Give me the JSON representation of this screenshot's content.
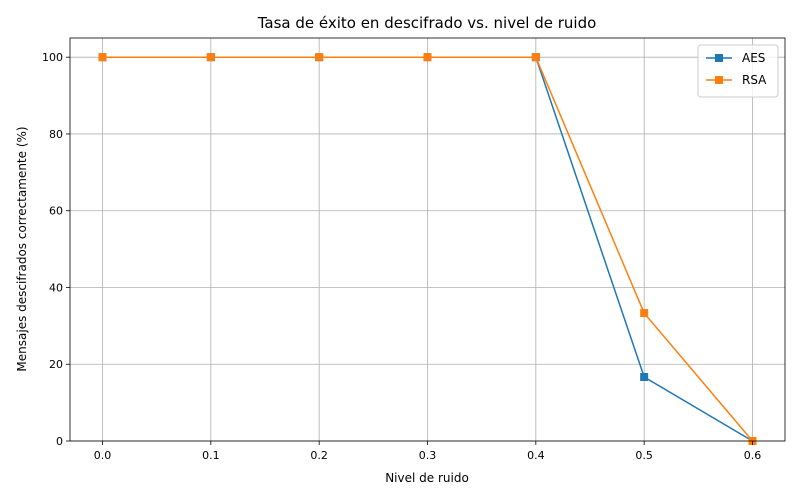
{
  "chart_data": {
    "type": "line",
    "title": "Tasa de éxito en descifrado vs. nivel de ruido",
    "xlabel": "Nivel de ruido",
    "ylabel": "Mensajes descifrados correctamente (%)",
    "x": [
      0.0,
      0.1,
      0.2,
      0.3,
      0.4,
      0.5,
      0.6
    ],
    "x_ticks": [
      "0.0",
      "0.1",
      "0.2",
      "0.3",
      "0.4",
      "0.5",
      "0.6"
    ],
    "y_ticks": [
      "0",
      "20",
      "40",
      "60",
      "80",
      "100"
    ],
    "xlim": [
      -0.03,
      0.63
    ],
    "ylim": [
      0,
      105
    ],
    "grid": true,
    "legend_position": "top-right",
    "series": [
      {
        "name": "AES",
        "color": "#1f77b4",
        "marker": "square",
        "values": [
          100,
          100,
          100,
          100,
          100,
          16.67,
          0
        ]
      },
      {
        "name": "RSA",
        "color": "#ff7f0e",
        "marker": "square",
        "values": [
          100,
          100,
          100,
          100,
          100,
          33.33,
          0
        ]
      }
    ]
  }
}
